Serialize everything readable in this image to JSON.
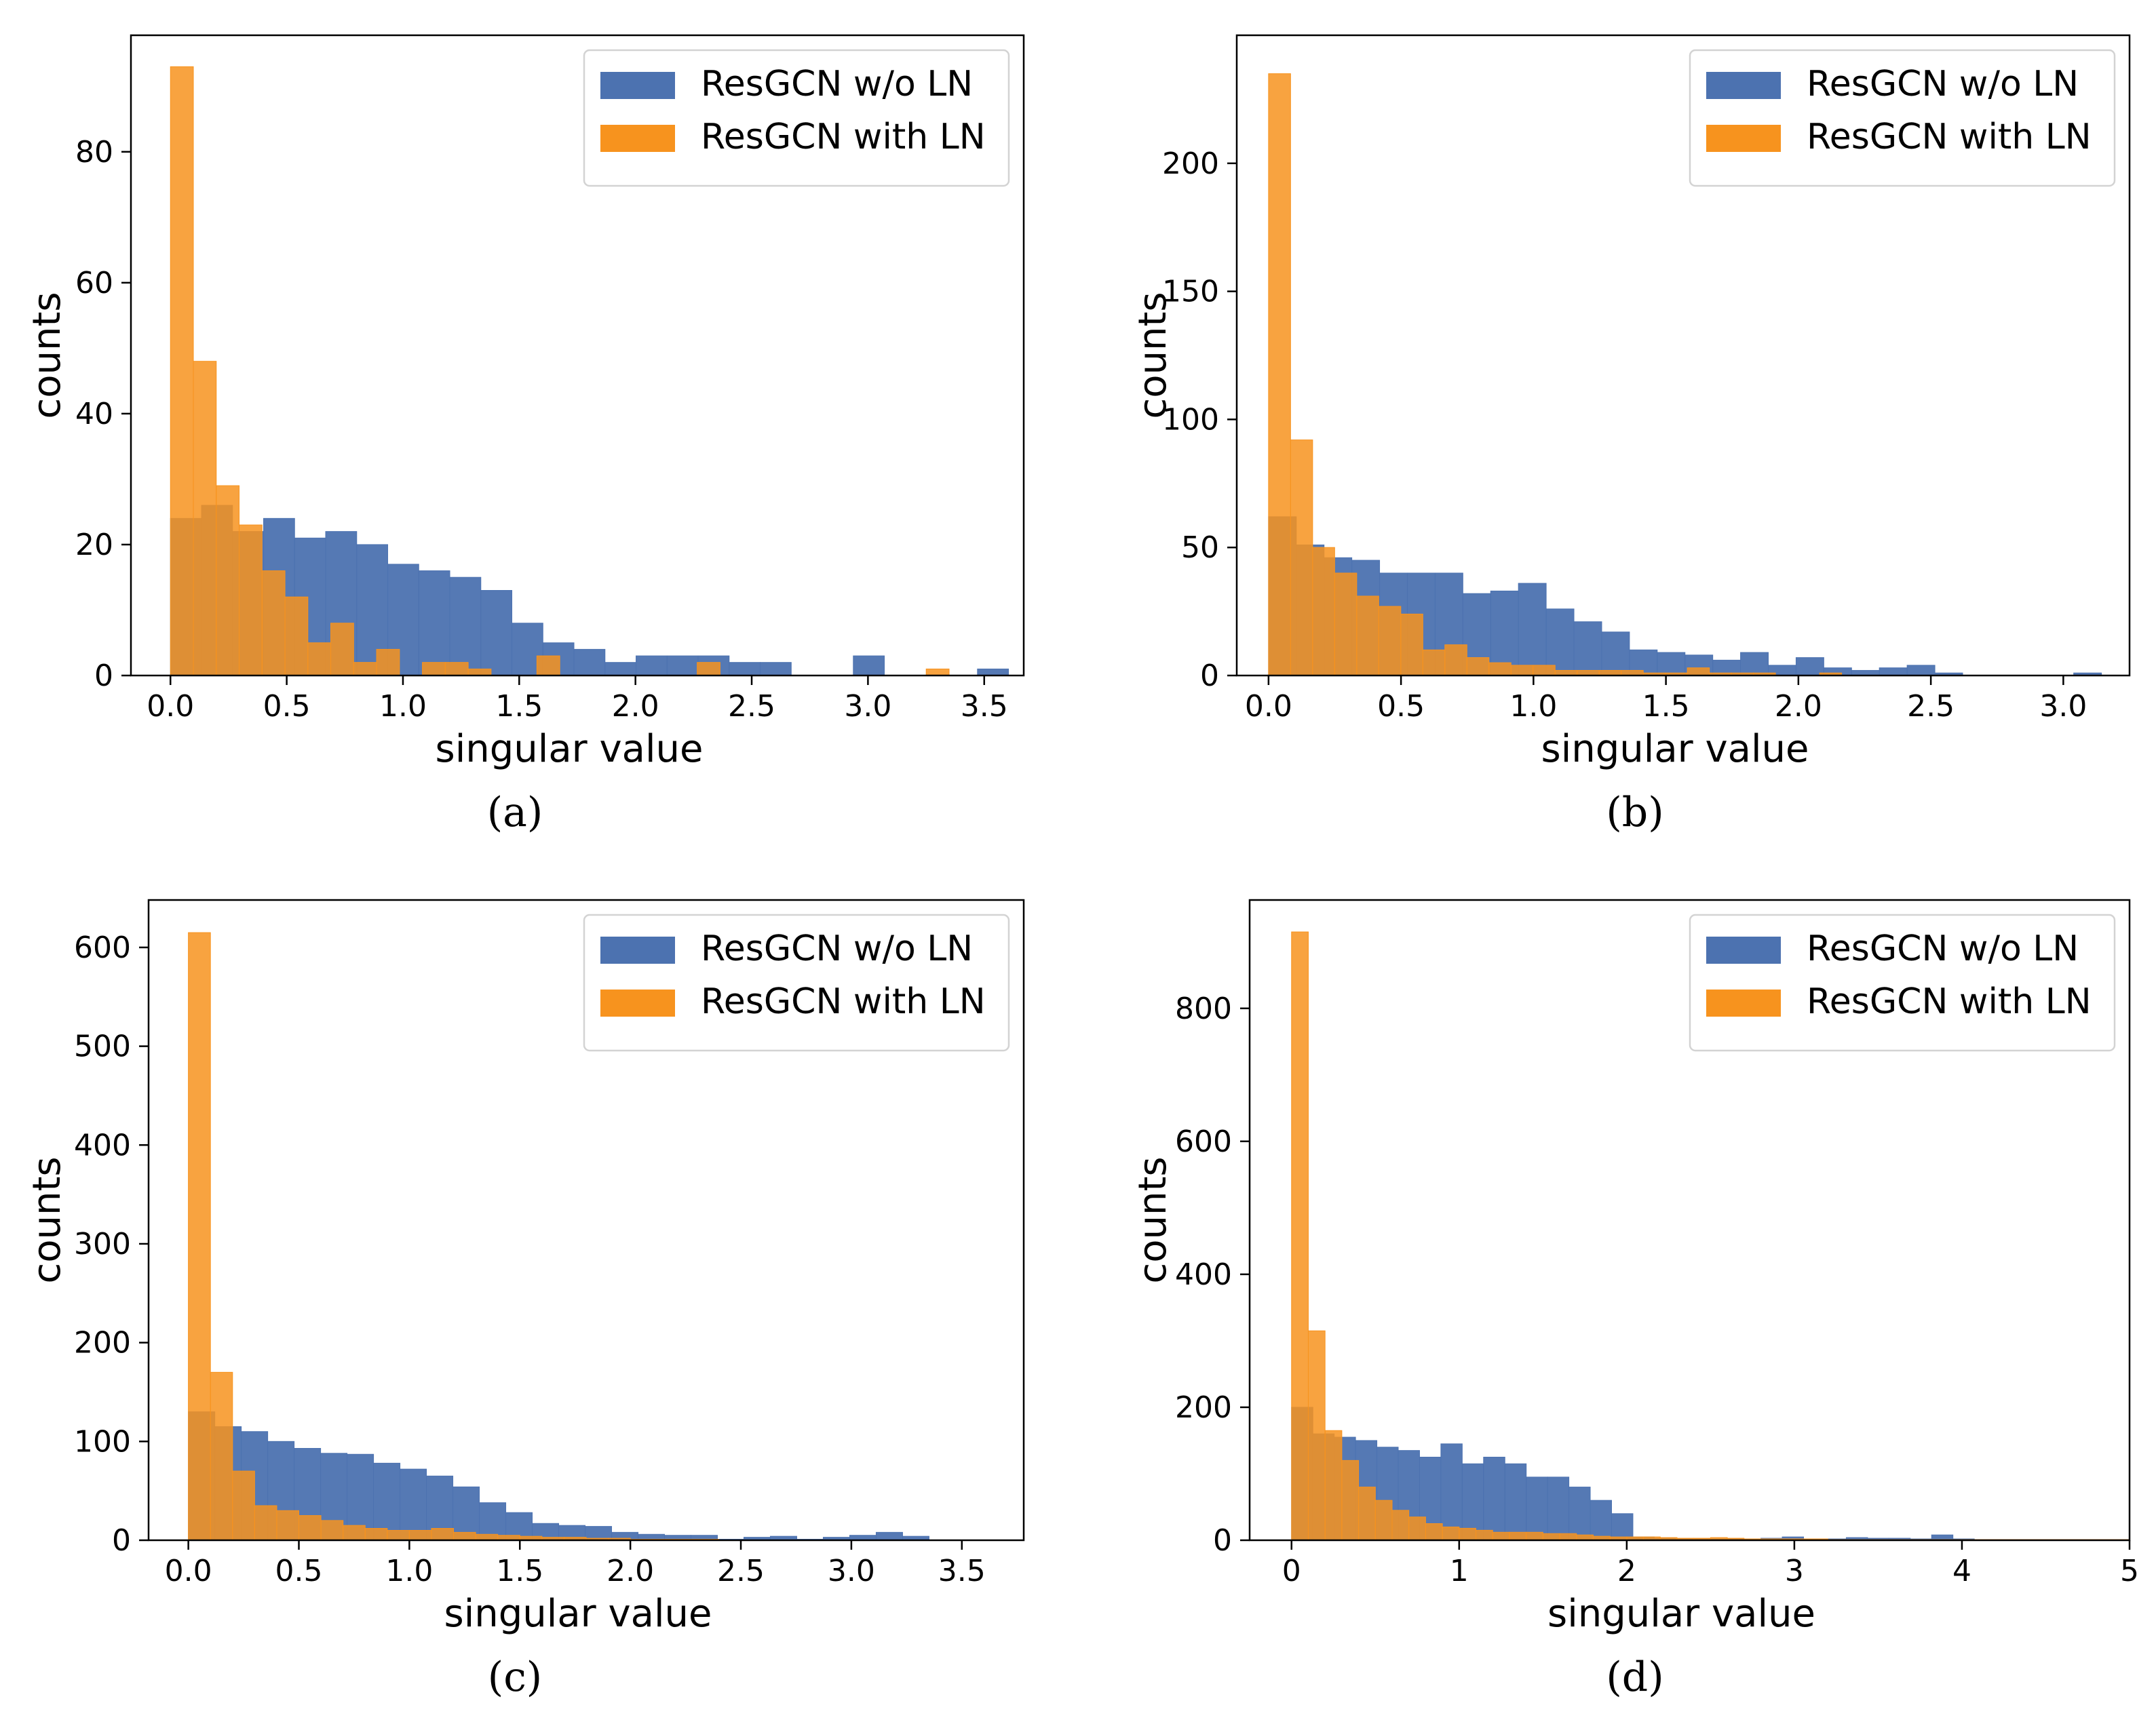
{
  "chart_data": [
    {
      "type": "bar",
      "caption": "(a)",
      "xlabel": "singular value",
      "ylabel": "counts",
      "xlim": [
        -0.17,
        3.67
      ],
      "ylim": [
        0,
        97.8
      ],
      "xticks": [
        0.0,
        0.5,
        1.0,
        1.5,
        2.0,
        2.5,
        3.0,
        3.5
      ],
      "xtick_labels": [
        "0.0",
        "0.5",
        "1.0",
        "1.5",
        "2.0",
        "2.5",
        "3.0",
        "3.5"
      ],
      "yticks": [
        0,
        20,
        40,
        60,
        80
      ],
      "ytick_labels": [
        "0",
        "20",
        "40",
        "60",
        "80"
      ],
      "legend": {
        "location": "top-right",
        "entries": [
          "ResGCN w/o LN",
          "ResGCN with LN"
        ]
      },
      "series": [
        {
          "name": "ResGCN w/o LN",
          "color": "#4c72b0",
          "bin_start": 0.0,
          "bin_width": 0.1335,
          "values": [
            24,
            26,
            22,
            24,
            21,
            22,
            20,
            17,
            16,
            15,
            13,
            8,
            5,
            4,
            2,
            3,
            3,
            3,
            2,
            2,
            0,
            0,
            3,
            0,
            0,
            0,
            1
          ]
        },
        {
          "name": "ResGCN with LN",
          "color": "#f7931e",
          "bin_start": 0.0,
          "bin_width": 0.0985,
          "values": [
            93,
            48,
            29,
            23,
            16,
            12,
            5,
            8,
            2,
            4,
            0,
            2,
            2,
            1,
            0,
            0,
            3,
            0,
            0,
            0,
            0,
            0,
            0,
            2,
            0,
            0,
            0,
            0,
            0,
            0,
            0,
            0,
            0,
            1
          ]
        }
      ]
    },
    {
      "type": "bar",
      "caption": "(b)",
      "xlabel": "singular value",
      "ylabel": "counts",
      "xlim": [
        -0.12,
        3.25
      ],
      "ylim": [
        0,
        250
      ],
      "xticks": [
        0.0,
        0.5,
        1.0,
        1.5,
        2.0,
        2.5,
        3.0
      ],
      "xtick_labels": [
        "0.0",
        "0.5",
        "1.0",
        "1.5",
        "2.0",
        "2.5",
        "3.0"
      ],
      "yticks": [
        0,
        50,
        100,
        150,
        200
      ],
      "ytick_labels": [
        "0",
        "50",
        "100",
        "150",
        "200"
      ],
      "legend": {
        "location": "top-right",
        "entries": [
          "ResGCN w/o LN",
          "ResGCN with LN"
        ]
      },
      "series": [
        {
          "name": "ResGCN w/o LN",
          "color": "#4c72b0",
          "bin_start": 0.0,
          "bin_width": 0.1048,
          "values": [
            62,
            51,
            46,
            45,
            40,
            40,
            40,
            32,
            33,
            36,
            26,
            21,
            17,
            10,
            9,
            8,
            6,
            9,
            4,
            7,
            3,
            2,
            3,
            4,
            1,
            0,
            0,
            0,
            0,
            1
          ]
        },
        {
          "name": "ResGCN with LN",
          "color": "#f7931e",
          "bin_start": 0.0,
          "bin_width": 0.0832,
          "values": [
            235,
            92,
            50,
            40,
            31,
            27,
            24,
            10,
            12,
            7,
            5,
            4,
            4,
            2,
            2,
            2,
            2,
            1,
            1,
            3,
            1,
            1,
            1,
            0,
            0,
            1,
            0,
            0,
            0,
            0
          ]
        }
      ]
    },
    {
      "type": "bar",
      "caption": "(c)",
      "xlabel": "singular value",
      "ylabel": "counts",
      "xlim": [
        -0.18,
        3.78
      ],
      "ylim": [
        0,
        648
      ],
      "xticks": [
        0.0,
        0.5,
        1.0,
        1.5,
        2.0,
        2.5,
        3.0,
        3.5
      ],
      "xtick_labels": [
        "0.0",
        "0.5",
        "1.0",
        "1.5",
        "2.0",
        "2.5",
        "3.0",
        "3.5"
      ],
      "yticks": [
        0,
        100,
        200,
        300,
        400,
        500,
        600
      ],
      "ytick_labels": [
        "0",
        "100",
        "200",
        "300",
        "400",
        "500",
        "600"
      ],
      "legend": {
        "location": "top-right",
        "entries": [
          "ResGCN w/o LN",
          "ResGCN with LN"
        ]
      },
      "series": [
        {
          "name": "ResGCN w/o LN",
          "color": "#4c72b0",
          "bin_start": 0.0,
          "bin_width": 0.1197,
          "values": [
            130,
            115,
            110,
            100,
            93,
            88,
            87,
            78,
            72,
            65,
            54,
            38,
            28,
            17,
            15,
            14,
            8,
            6,
            5,
            5,
            1,
            3,
            4,
            1,
            3,
            5,
            8,
            4,
            0,
            0
          ]
        },
        {
          "name": "ResGCN with LN",
          "color": "#f7931e",
          "bin_start": 0.0,
          "bin_width": 0.1,
          "values": [
            615,
            170,
            70,
            35,
            30,
            25,
            20,
            15,
            12,
            10,
            10,
            12,
            8,
            6,
            5,
            4,
            3,
            3,
            2,
            2,
            1,
            1,
            1,
            1,
            0,
            0,
            0,
            0,
            0,
            0,
            0,
            0,
            0,
            0,
            0,
            0
          ]
        }
      ]
    },
    {
      "type": "bar",
      "caption": "(d)",
      "xlabel": "singular value",
      "ylabel": "counts",
      "xlim": [
        -0.25,
        5.0
      ],
      "ylim": [
        0,
        963
      ],
      "xticks": [
        0,
        1,
        2,
        3,
        4,
        5
      ],
      "xtick_labels": [
        "0",
        "1",
        "2",
        "3",
        "4",
        "5"
      ],
      "yticks": [
        0,
        200,
        400,
        600,
        800
      ],
      "ytick_labels": [
        "0",
        "200",
        "400",
        "600",
        "800"
      ],
      "legend": {
        "location": "top-right",
        "entries": [
          "ResGCN w/o LN",
          "ResGCN with LN"
        ]
      },
      "series": [
        {
          "name": "ResGCN w/o LN",
          "color": "#4c72b0",
          "bin_start": 0.0,
          "bin_width": 0.1273,
          "values": [
            200,
            160,
            155,
            150,
            140,
            135,
            125,
            145,
            115,
            125,
            115,
            95,
            95,
            80,
            60,
            40,
            5,
            3,
            2,
            2,
            2,
            2,
            3,
            5,
            2,
            2,
            4,
            3,
            3,
            2,
            8,
            2
          ]
        },
        {
          "name": "ResGCN with LN",
          "color": "#f7931e",
          "bin_start": 0.0,
          "bin_width": 0.1,
          "values": [
            915,
            315,
            165,
            120,
            80,
            60,
            45,
            35,
            25,
            20,
            18,
            15,
            12,
            12,
            12,
            10,
            10,
            8,
            6,
            5,
            5,
            5,
            4,
            3,
            3,
            4,
            3,
            2,
            2,
            2,
            2,
            2,
            1,
            1,
            1,
            1,
            1,
            1,
            1,
            1,
            1,
            1,
            1,
            1,
            1,
            1,
            1,
            1,
            1,
            1
          ]
        }
      ]
    }
  ]
}
